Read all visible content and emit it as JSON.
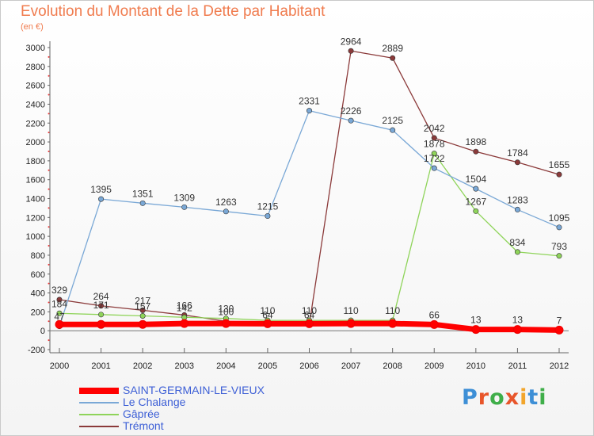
{
  "header": {
    "title": "Evolution du Montant de la Dette par Habitant",
    "subtitle": "(en €)"
  },
  "branding": {
    "logo_letters": [
      "P",
      "r",
      "o",
      "x",
      "i",
      "t",
      "i"
    ],
    "logo_colors": [
      "#3d8fd6",
      "#e8552a",
      "#3fae49",
      "#e8552a",
      "#f2a52b",
      "#3d8fd6",
      "#3fae49"
    ]
  },
  "chart_data": {
    "type": "line",
    "title": "Evolution du Montant de la Dette par Habitant",
    "subtitle": "(en €)",
    "x": [
      "2000",
      "2001",
      "2002",
      "2003",
      "2004",
      "2005",
      "2006",
      "2007",
      "2008",
      "2009",
      "2010",
      "2011",
      "2012"
    ],
    "ylim": [
      -200,
      3000
    ],
    "yticks": [
      "-200",
      "0",
      "200",
      "400",
      "600",
      "800",
      "1000",
      "1200",
      "1400",
      "1600",
      "1800",
      "2000",
      "2200",
      "2400",
      "2600",
      "2800",
      "3000"
    ],
    "grid": false,
    "legend_position": "bottom-left",
    "series": [
      {
        "name": "SAINT-GERMAIN-LE-VIEUX",
        "color": "#ff0000",
        "values": [
          67,
          67,
          67,
          76,
          76,
          74,
          74,
          76,
          76,
          66,
          13,
          13,
          7
        ],
        "labels": [
          "",
          "",
          "",
          "",
          "",
          "",
          "",
          "",
          "",
          "66",
          "13",
          "13",
          "7"
        ]
      },
      {
        "name": "Le Chalange",
        "color": "#7aa8d6",
        "values": [
          47,
          1395,
          1351,
          1309,
          1263,
          1215,
          2331,
          2226,
          2125,
          1722,
          1504,
          1283,
          1095
        ],
        "labels": [
          "47",
          "1395",
          "1351",
          "1309",
          "1263",
          "1215",
          "2331",
          "2226",
          "2125",
          "1722",
          "1504",
          "1283",
          "1095"
        ]
      },
      {
        "name": "Gâprée",
        "color": "#8fd45a",
        "values": [
          184,
          171,
          157,
          142,
          130,
          110,
          110,
          110,
          110,
          1878,
          1267,
          834,
          793
        ],
        "labels": [
          "184",
          "171",
          "157",
          "142",
          "130",
          "110",
          "110",
          "110",
          "110",
          "1878",
          "1267",
          "834",
          "793"
        ]
      },
      {
        "name": "Trémont",
        "color": "#8b3a3a",
        "values": [
          329,
          264,
          217,
          166,
          100,
          64,
          64,
          2964,
          2889,
          2042,
          1898,
          1784,
          1655
        ],
        "labels": [
          "329",
          "264",
          "217",
          "166",
          "100",
          "64",
          "64",
          "2964",
          "2889",
          "2042",
          "1898",
          "1784",
          "1655"
        ]
      }
    ]
  }
}
